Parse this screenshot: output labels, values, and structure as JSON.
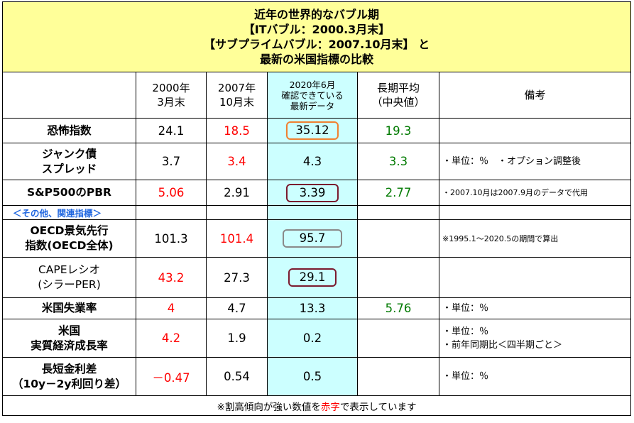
{
  "title": {
    "lines": [
      "近年の世界的なバブル期",
      "【ITバブル：2000.3月末】",
      "【サブプライムバブル：2007.10月末】 と",
      "最新の米国指標の比較"
    ]
  },
  "headers": {
    "col1": [
      "2000年",
      "3月末"
    ],
    "col2": [
      "2007年",
      "10月末"
    ],
    "col3": [
      "2020年6月",
      "確認できている",
      "最新データ"
    ],
    "col4": [
      "長期平均",
      "（中央値）"
    ],
    "col5": "備考"
  },
  "rows": {
    "fear": {
      "label": [
        "恐怖指数"
      ],
      "v2000": "24.1",
      "v2007": "18.5",
      "latest": "35.12",
      "avg": "19.3",
      "note": ""
    },
    "junk": {
      "label": [
        "ジャンク債",
        "スプレッド"
      ],
      "v2000": "3.7",
      "v2007": "3.4",
      "latest": "4.3",
      "avg": "3.3",
      "note": "・単位：％　・オプション調整後"
    },
    "pbr": {
      "label": [
        "S&P500のPBR"
      ],
      "v2000": "5.06",
      "v2007": "2.91",
      "latest": "3.39",
      "avg": "2.77",
      "note": "・2007.10月は2007.9月のデータで代用"
    },
    "section": "＜その他、関連指標＞",
    "oecd": {
      "label": [
        "OECD景気先行",
        "指数(OECD全体)"
      ],
      "v2000": "101.3",
      "v2007": "101.4",
      "latest": "95.7",
      "avg": "",
      "note": "※1995.1～2020.5の期間で算出"
    },
    "cape": {
      "label": [
        "CAPEレシオ",
        "(シラーPER)"
      ],
      "v2000": "43.2",
      "v2007": "27.3",
      "latest": "29.1",
      "avg": "",
      "note": ""
    },
    "unemp": {
      "label": [
        "米国失業率"
      ],
      "v2000": "4",
      "v2007": "4.7",
      "latest": "13.3",
      "avg": "5.76",
      "note": "・単位：％"
    },
    "gdp": {
      "label": [
        "米国",
        "実質経済成長率"
      ],
      "v2000": "4.2",
      "v2007": "1.9",
      "latest": "0.2",
      "avg": "",
      "note": [
        "・単位：％",
        "・前年同期比＜四半期ごと＞"
      ]
    },
    "spread": {
      "label": [
        "長短金利差",
        "（10y－2y利回り差）"
      ],
      "v2000": "－0.47",
      "v2007": "0.54",
      "latest": "0.5",
      "avg": "",
      "note": "・単位：％"
    }
  },
  "footer": {
    "before": "※割高傾向が強い数値を",
    "red": "赤字",
    "after": "で表示しています"
  },
  "colors": {
    "title_bg": "#ffff99",
    "latest_bg": "#ccffff",
    "high": "#ff0000",
    "average": "#007a00",
    "section": "#1f66e0"
  }
}
